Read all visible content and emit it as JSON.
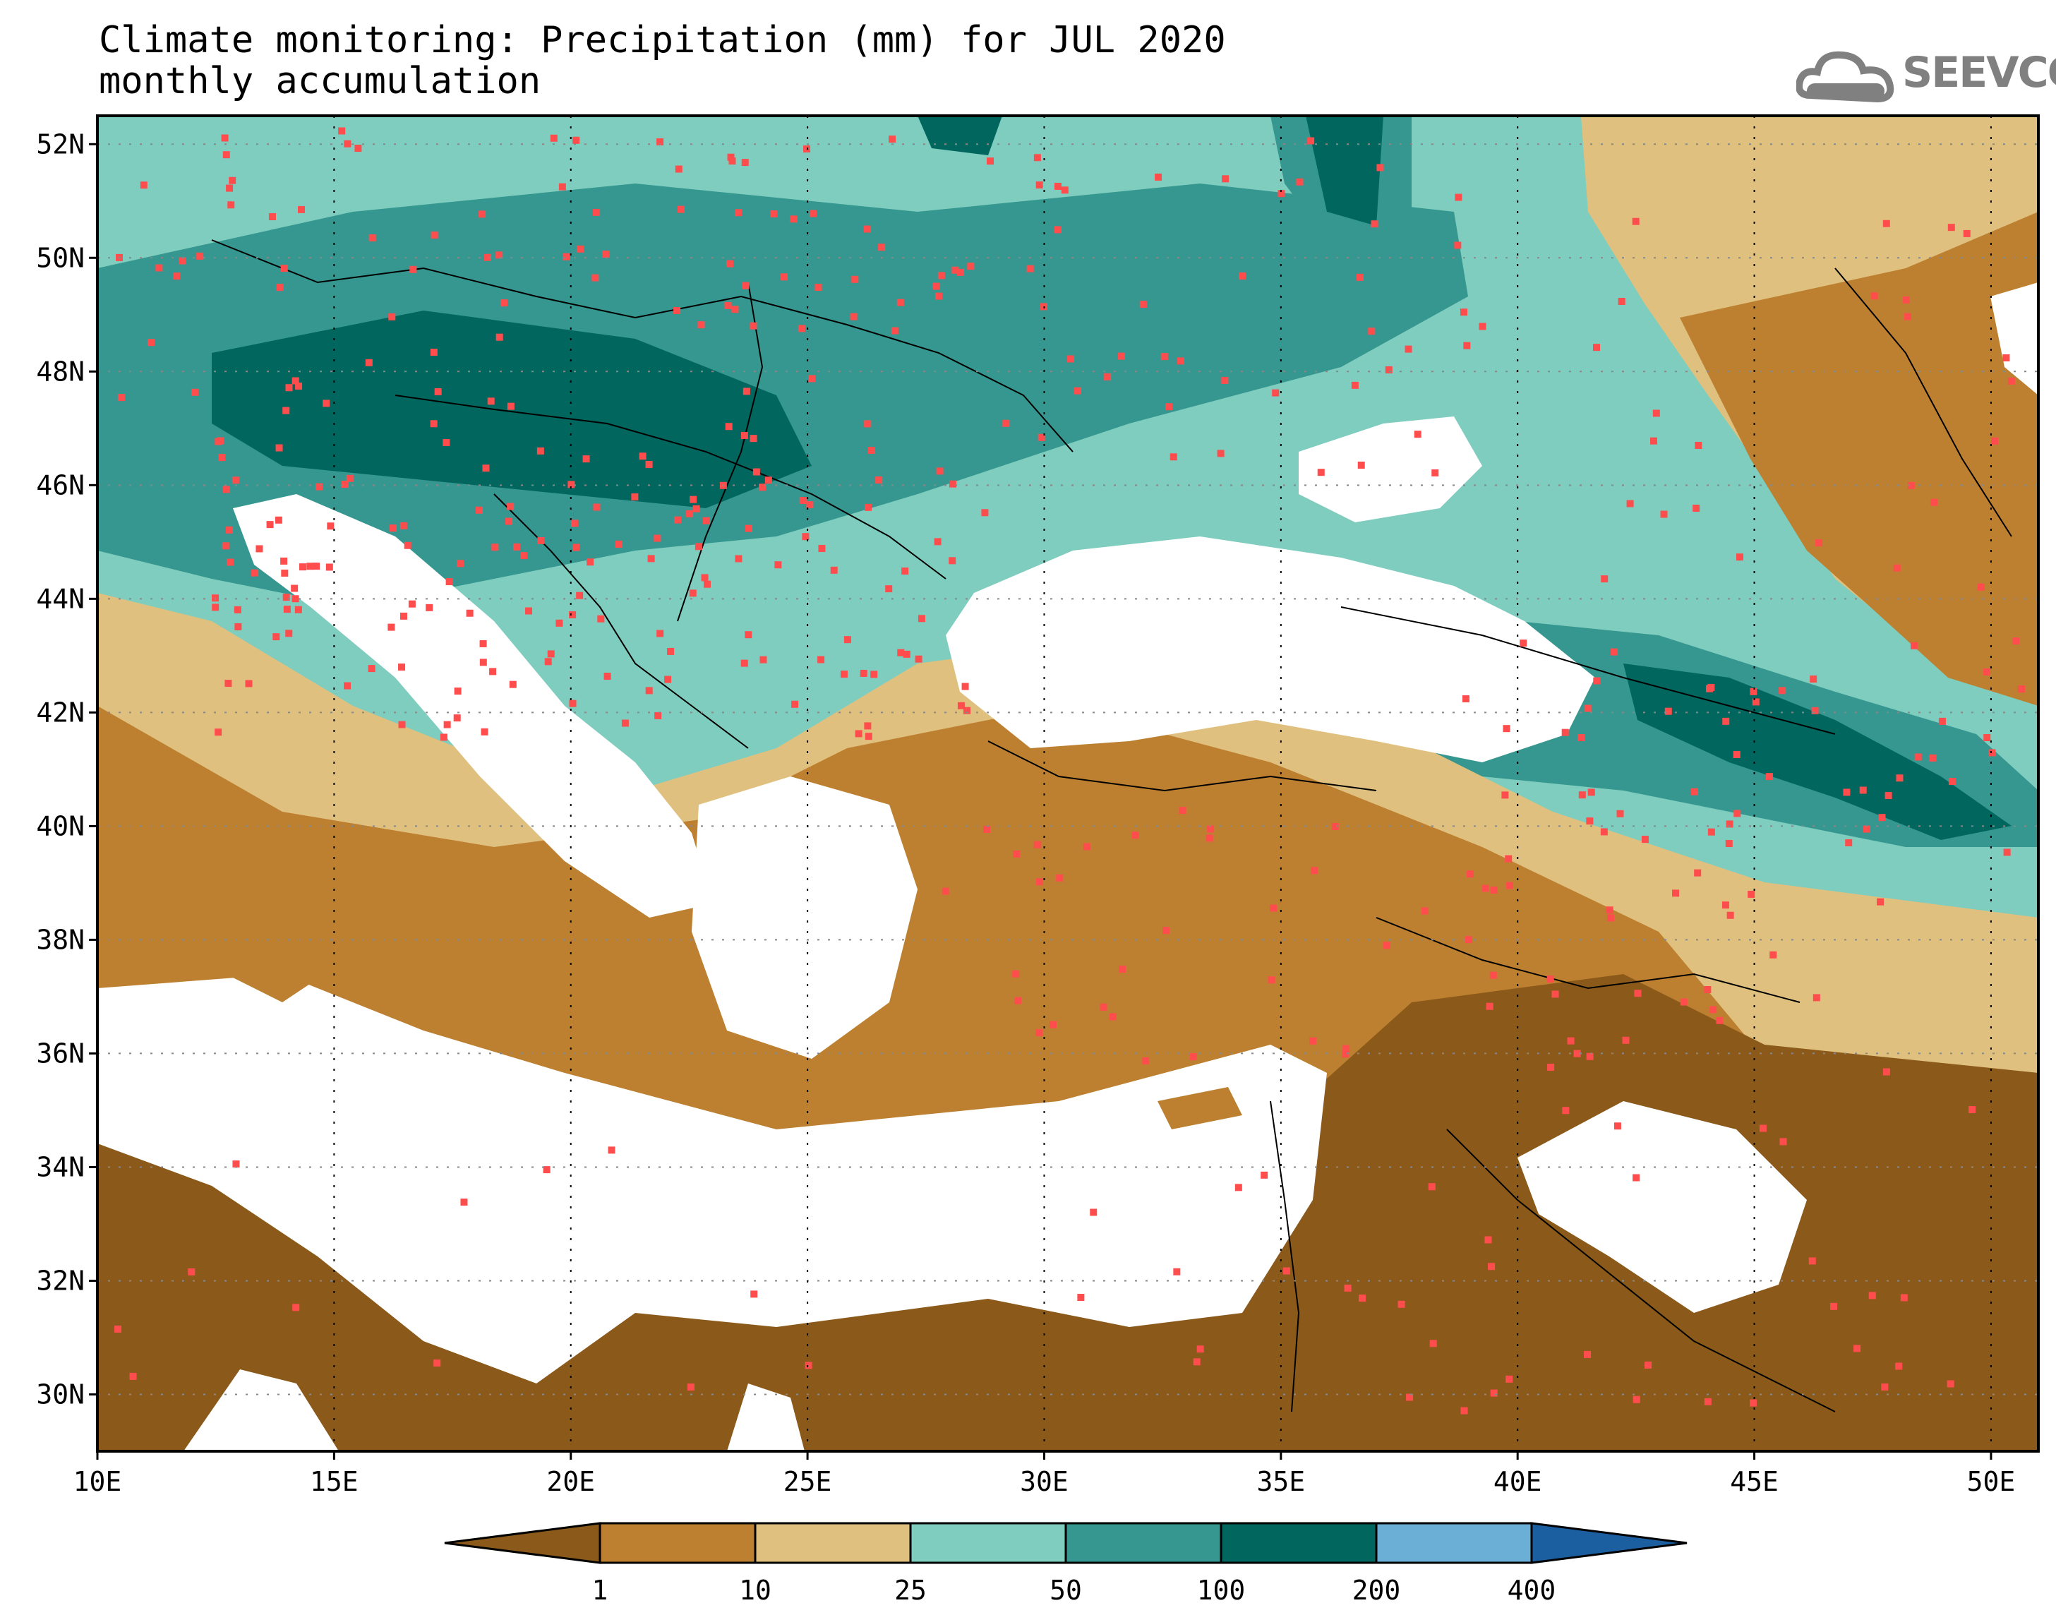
{
  "title": {
    "line1": "Climate monitoring: Precipitation (mm) for JUL 2020",
    "line2": "monthly accumulation"
  },
  "logo": {
    "text": "SEEVCCC",
    "icon": "cloud-icon"
  },
  "map": {
    "lat_labels": [
      "52N",
      "50N",
      "48N",
      "46N",
      "44N",
      "42N",
      "40N",
      "38N",
      "36N",
      "34N",
      "32N",
      "30N"
    ],
    "lon_labels": [
      "10E",
      "15E",
      "20E",
      "25E",
      "30E",
      "35E",
      "40E",
      "45E",
      "50E"
    ],
    "lat_range": [
      29,
      52.5
    ],
    "lon_range": [
      10,
      51
    ],
    "grid": "dotted"
  },
  "legend": {
    "thresholds": [
      "1",
      "10",
      "25",
      "50",
      "100",
      "200",
      "400"
    ],
    "colors": [
      "#8b5a1a",
      "#bd8030",
      "#e0c07e",
      "#7fcdbf",
      "#35978f",
      "#01665e",
      "#6baed6",
      "#1c5fa0"
    ]
  },
  "colors": {
    "sea": "#ffffff",
    "station": "#ff4d4d",
    "border": "#000000"
  }
}
